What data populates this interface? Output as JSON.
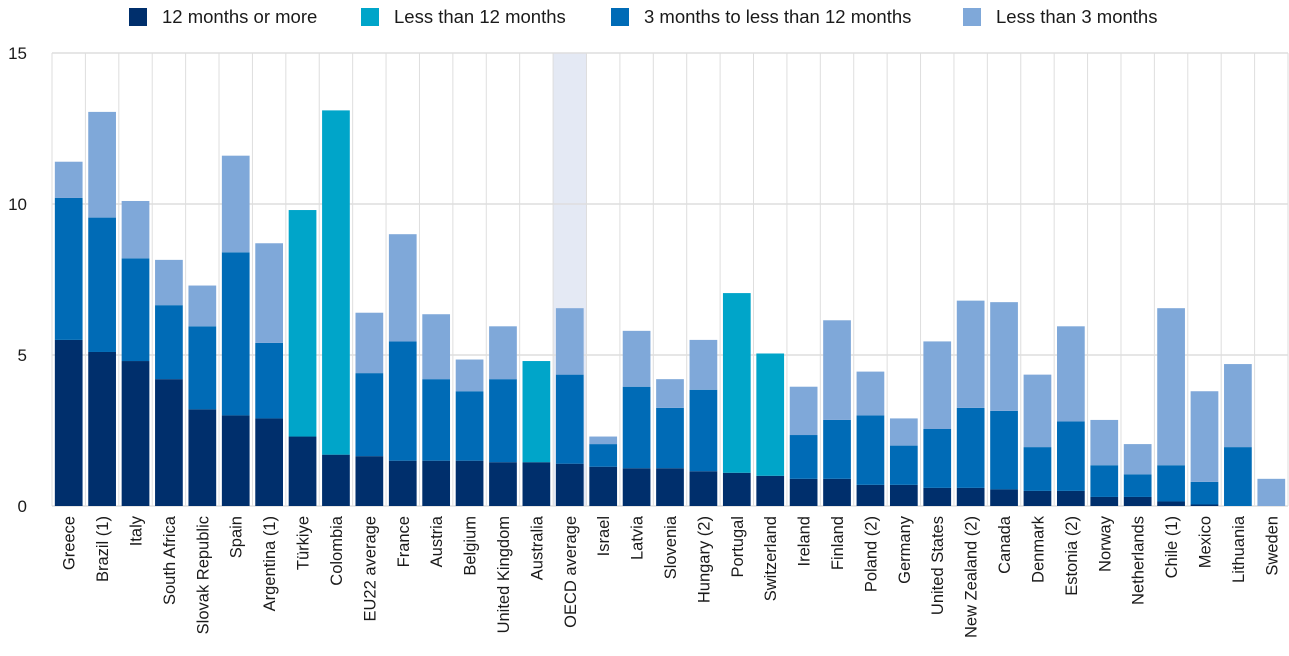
{
  "chart_data": {
    "type": "bar",
    "stacked": true,
    "title": "",
    "xlabel": "",
    "ylabel": "",
    "ylim": [
      0,
      15
    ],
    "yticks": [
      0,
      5,
      10,
      15
    ],
    "grid": true,
    "legend_position": "top",
    "highlight_category": "OECD average",
    "categories": [
      "Greece",
      "Brazil (1)",
      "Italy",
      "South Africa",
      "Slovak Republic",
      "Spain",
      "Argentina (1)",
      "Türkiye",
      "Colombia",
      "EU22 average",
      "France",
      "Austria",
      "Belgium",
      "United Kingdom",
      "Australia",
      "OECD average",
      "Israel",
      "Latvia",
      "Slovenia",
      "Hungary (2)",
      "Portugal",
      "Switzerland",
      "Ireland",
      "Finland",
      "Poland (2)",
      "Germany",
      "United States",
      "New Zealand (2)",
      "Canada",
      "Denmark",
      "Estonia (2)",
      "Norway",
      "Netherlands",
      "Chile (1)",
      "Mexico",
      "Lithuania",
      "Sweden"
    ],
    "series": [
      {
        "name": "12 months or more",
        "color": "#002f6c",
        "values": [
          5.5,
          5.1,
          4.8,
          4.2,
          3.2,
          3.0,
          2.9,
          2.3,
          1.7,
          1.65,
          1.5,
          1.5,
          1.5,
          1.45,
          1.45,
          1.4,
          1.3,
          1.25,
          1.25,
          1.15,
          1.1,
          1.0,
          0.9,
          0.9,
          0.7,
          0.7,
          0.6,
          0.6,
          0.55,
          0.5,
          0.5,
          0.3,
          0.3,
          0.15,
          0.05,
          0,
          0
        ]
      },
      {
        "name": "Less than 12 months",
        "color": "#00a5c9",
        "values": [
          0,
          0,
          0,
          0,
          0,
          0,
          0,
          7.5,
          11.4,
          0,
          0,
          0,
          0,
          0,
          3.35,
          0,
          0,
          0,
          0,
          0,
          5.95,
          4.05,
          0,
          0,
          0,
          0,
          0,
          0,
          0,
          0,
          0,
          0,
          0,
          0,
          0,
          0,
          0
        ]
      },
      {
        "name": "3 months to less than 12 months",
        "color": "#006bb6",
        "values": [
          4.7,
          4.45,
          3.4,
          2.45,
          2.75,
          5.4,
          2.5,
          0,
          0,
          2.75,
          3.95,
          2.7,
          2.3,
          2.75,
          0,
          2.95,
          0.75,
          2.7,
          2.0,
          2.7,
          0,
          0,
          1.45,
          1.95,
          2.3,
          1.3,
          1.95,
          2.65,
          2.6,
          1.45,
          2.3,
          1.05,
          0.75,
          1.2,
          0.75,
          1.95,
          0
        ]
      },
      {
        "name": "Less than 3 months",
        "color": "#7fa8d9",
        "values": [
          1.2,
          3.5,
          1.9,
          1.5,
          1.35,
          3.2,
          3.3,
          0,
          0,
          2.0,
          3.55,
          2.15,
          1.05,
          1.75,
          0,
          2.2,
          0.25,
          1.85,
          0.95,
          1.65,
          0,
          0,
          1.6,
          3.3,
          1.45,
          0.9,
          2.9,
          3.55,
          3.6,
          2.4,
          3.15,
          1.5,
          1.0,
          5.2,
          3.0,
          2.75,
          0.9
        ]
      }
    ]
  },
  "legend": {
    "items": [
      {
        "label": "12 months or more",
        "color": "#002f6c"
      },
      {
        "label": "Less than 12 months",
        "color": "#00a5c9"
      },
      {
        "label": "3 months to less than 12 months",
        "color": "#006bb6"
      },
      {
        "label": "Less than 3 months",
        "color": "#7fa8d9"
      }
    ]
  },
  "colors": {
    "highlight_band": "#e4e9f4",
    "grid": "#dedede",
    "text": "#1a1a1a"
  }
}
